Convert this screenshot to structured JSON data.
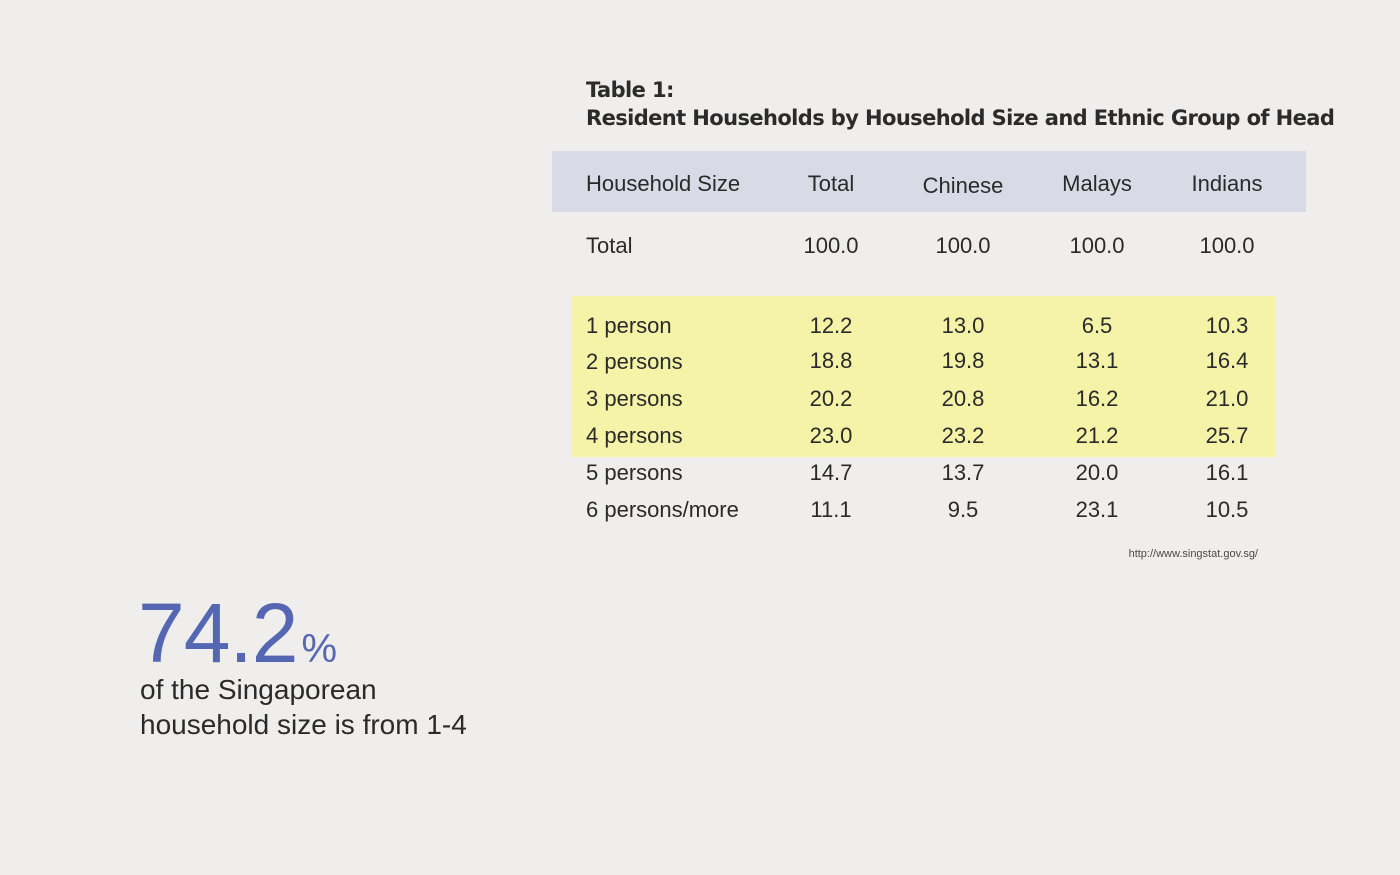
{
  "table": {
    "title_line1": "Table 1:",
    "title_line2": "Resident Households by Household Size and Ethnic Group of Head",
    "headers": [
      "Household Size",
      "Total",
      "Chinese",
      "Malays",
      "Indians"
    ],
    "total_row": [
      "Total",
      "100.0",
      "100.0",
      "100.0",
      "100.0"
    ],
    "rows": [
      [
        "1 person",
        "12.2",
        "13.0",
        "6.5",
        "10.3"
      ],
      [
        "2 persons",
        "18.8",
        "19.8",
        "13.1",
        "16.4"
      ],
      [
        "3 persons",
        "20.2",
        "20.8",
        "16.2",
        "21.0"
      ],
      [
        "4 persons",
        "23.0",
        "23.2",
        "21.2",
        "25.7"
      ],
      [
        "5 persons",
        "14.7",
        "13.7",
        "20.0",
        "16.1"
      ],
      [
        "6 persons/more",
        "11.1",
        "9.5",
        "23.1",
        "10.5"
      ]
    ],
    "source": "http://www.singstat.gov.sg/"
  },
  "stat": {
    "value": "74.2",
    "unit": "%",
    "caption_line1": "of the Singaporean",
    "caption_line2": "household size is from 1-4"
  },
  "colors": {
    "background": "#efeeec",
    "header_band": "#d8dbe6",
    "highlight_band": "#f4f3a8",
    "accent": "#5567b3"
  }
}
